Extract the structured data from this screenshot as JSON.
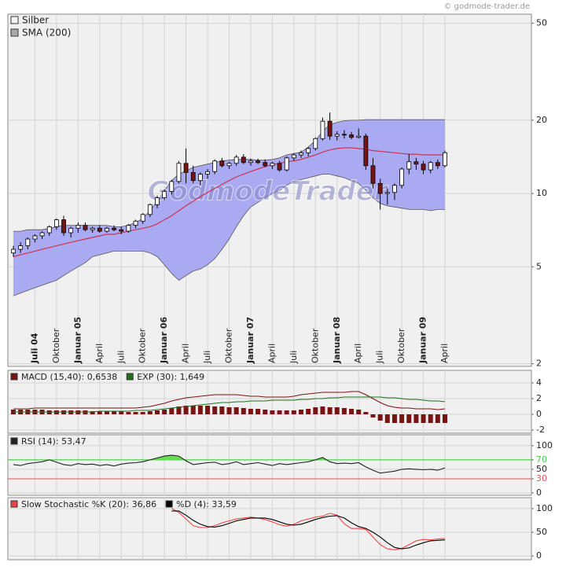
{
  "chart_data": [
    {
      "type": "candlestick",
      "name": "Silber",
      "credit": "© godmode-trader.de",
      "watermark": "GodmodeTrader",
      "log_scale": true,
      "ylim": [
        1.95,
        54.5
      ],
      "yticks": [
        2,
        5,
        10,
        20,
        50
      ],
      "grid": true,
      "categories": [
        null,
        null,
        null,
        "Juli 04",
        null,
        null,
        "Oktober",
        null,
        null,
        "Januar 05",
        null,
        null,
        "April",
        null,
        null,
        "Juli",
        null,
        null,
        "Oktober",
        null,
        null,
        "Januar 06",
        null,
        null,
        "April",
        null,
        null,
        "Juli",
        null,
        null,
        "Oktober",
        null,
        null,
        "Januar 07",
        null,
        null,
        "April",
        null,
        null,
        "Juli",
        null,
        null,
        "Oktober",
        null,
        null,
        "Januar 08",
        null,
        null,
        "April",
        null,
        null,
        "Juli",
        null,
        null,
        "Oktober",
        null,
        null,
        "Januar 09",
        null,
        null,
        "April"
      ],
      "up_color": "#ffffff",
      "down_color": "#7a1414",
      "open": [
        5.7,
        5.9,
        6.1,
        6.5,
        6.7,
        6.9,
        7.3,
        7.8,
        6.9,
        7.2,
        7.4,
        7.1,
        7.2,
        7.0,
        7.2,
        7.1,
        7.0,
        7.4,
        7.7,
        8.2,
        9.0,
        9.6,
        10.2,
        11.2,
        13.3,
        12.2,
        11.3,
        12.0,
        12.3,
        13.6,
        13.0,
        13.3,
        14.1,
        13.4,
        13.6,
        13.4,
        13.0,
        13.3,
        12.5,
        14.0,
        14.4,
        14.7,
        15.3,
        16.8,
        19.8,
        17.2,
        17.5,
        17.4,
        17.0,
        17.2,
        13.0,
        11.0,
        10.0,
        10.1,
        10.8,
        12.6,
        13.5,
        13.2,
        12.5,
        13.4,
        13.0
      ],
      "high": [
        6.1,
        6.3,
        6.6,
        6.8,
        7.0,
        7.4,
        7.9,
        8.1,
        7.3,
        7.6,
        7.6,
        7.3,
        7.4,
        7.3,
        7.4,
        7.3,
        7.5,
        7.8,
        8.3,
        9.1,
        9.8,
        10.4,
        11.4,
        13.6,
        15.3,
        13.0,
        12.2,
        12.6,
        13.8,
        14.0,
        13.5,
        14.4,
        14.5,
        13.9,
        13.9,
        13.8,
        13.5,
        13.6,
        14.2,
        14.6,
        15.0,
        15.5,
        17.0,
        20.5,
        21.5,
        18.0,
        18.2,
        17.9,
        18.5,
        17.6,
        14.0,
        11.5,
        10.5,
        11.0,
        12.8,
        14.5,
        14.0,
        13.6,
        13.6,
        13.8,
        15.0
      ],
      "low": [
        5.5,
        5.7,
        5.9,
        6.3,
        6.5,
        6.7,
        7.1,
        6.7,
        6.6,
        6.9,
        7.0,
        6.9,
        6.9,
        6.9,
        7.0,
        6.8,
        6.9,
        7.2,
        7.5,
        8.0,
        8.7,
        9.4,
        9.9,
        11.0,
        11.0,
        11.0,
        10.8,
        11.5,
        12.0,
        12.8,
        12.6,
        13.0,
        13.2,
        13.0,
        13.2,
        12.8,
        12.6,
        12.3,
        12.3,
        13.6,
        14.0,
        14.2,
        15.0,
        16.5,
        16.6,
        16.5,
        16.8,
        16.7,
        16.8,
        12.5,
        10.5,
        8.6,
        9.0,
        9.4,
        10.5,
        12.0,
        12.5,
        12.0,
        12.1,
        12.6,
        12.8
      ],
      "close": [
        5.9,
        6.1,
        6.5,
        6.7,
        6.9,
        7.3,
        7.8,
        6.9,
        7.2,
        7.4,
        7.1,
        7.2,
        7.0,
        7.2,
        7.1,
        7.0,
        7.4,
        7.7,
        8.2,
        9.0,
        9.6,
        10.2,
        11.2,
        13.3,
        12.2,
        11.3,
        12.0,
        12.3,
        13.6,
        13.0,
        13.3,
        14.1,
        13.4,
        13.6,
        13.4,
        13.0,
        13.3,
        12.5,
        14.0,
        14.4,
        14.7,
        15.3,
        16.8,
        19.8,
        17.2,
        17.5,
        17.4,
        17.0,
        17.2,
        13.0,
        11.0,
        10.0,
        10.1,
        10.8,
        12.6,
        13.5,
        13.2,
        12.5,
        13.4,
        13.0,
        14.7
      ],
      "sma": {
        "name": "SMA (200)",
        "color": "#cc3355",
        "values": [
          5.5,
          5.6,
          5.7,
          5.8,
          5.9,
          6.0,
          6.1,
          6.2,
          6.3,
          6.4,
          6.5,
          6.6,
          6.7,
          6.8,
          6.8,
          6.9,
          7.0,
          7.1,
          7.2,
          7.3,
          7.5,
          7.8,
          8.1,
          8.5,
          8.9,
          9.3,
          9.7,
          10.1,
          10.5,
          10.9,
          11.3,
          11.7,
          12.0,
          12.3,
          12.6,
          12.9,
          13.1,
          13.3,
          13.5,
          13.6,
          13.8,
          14.1,
          14.4,
          14.8,
          15.1,
          15.3,
          15.4,
          15.4,
          15.3,
          15.2,
          15.0,
          14.9,
          14.8,
          14.7,
          14.6,
          14.5,
          14.5,
          14.4,
          14.4,
          14.4,
          14.4
        ]
      },
      "band": {
        "color": "#a9aaf2",
        "upper": [
          7.0,
          7.0,
          7.1,
          7.1,
          7.1,
          7.2,
          7.3,
          7.4,
          7.4,
          7.4,
          7.4,
          7.4,
          7.4,
          7.4,
          7.3,
          7.3,
          7.4,
          7.6,
          7.9,
          8.5,
          9.3,
          10.3,
          11.3,
          12.0,
          12.4,
          12.8,
          13.0,
          13.2,
          13.4,
          13.6,
          13.7,
          13.8,
          13.8,
          13.8,
          13.7,
          13.7,
          13.8,
          14.0,
          14.4,
          14.6,
          14.8,
          15.5,
          16.5,
          18.0,
          19.2,
          19.6,
          19.9,
          20.0,
          20.0,
          20.1,
          20.1,
          20.1,
          20.1,
          20.1,
          20.1,
          20.1,
          20.1,
          20.1,
          20.1,
          20.1,
          20.1
        ],
        "lower": [
          3.8,
          3.9,
          4.0,
          4.1,
          4.2,
          4.3,
          4.4,
          4.6,
          4.8,
          5.0,
          5.2,
          5.5,
          5.6,
          5.7,
          5.8,
          5.8,
          5.8,
          5.8,
          5.8,
          5.7,
          5.5,
          5.1,
          4.7,
          4.4,
          4.6,
          4.8,
          4.9,
          5.1,
          5.4,
          5.9,
          6.5,
          7.3,
          8.1,
          8.8,
          9.2,
          9.6,
          10.0,
          10.3,
          10.8,
          11.2,
          11.4,
          11.6,
          11.8,
          12.0,
          12.0,
          11.8,
          11.6,
          11.3,
          11.0,
          10.3,
          9.6,
          9.1,
          8.9,
          8.8,
          8.7,
          8.6,
          8.6,
          8.6,
          8.5,
          8.6,
          8.6
        ]
      }
    },
    {
      "type": "macd",
      "ylim": [
        -2.4,
        5.6
      ],
      "yticks": [
        4,
        2,
        0,
        -2
      ],
      "grid": true,
      "histogram": {
        "color": "#7a1414",
        "values": [
          0.6,
          0.6,
          0.6,
          0.6,
          0.6,
          0.5,
          0.5,
          0.5,
          0.5,
          0.5,
          0.5,
          0.4,
          0.4,
          0.4,
          0.4,
          0.4,
          0.3,
          0.3,
          0.3,
          0.4,
          0.5,
          0.6,
          0.8,
          1.0,
          1.1,
          1.1,
          1.1,
          1.1,
          1.0,
          1.0,
          0.9,
          0.9,
          0.8,
          0.7,
          0.7,
          0.6,
          0.5,
          0.5,
          0.5,
          0.5,
          0.6,
          0.7,
          0.9,
          1.0,
          0.9,
          0.9,
          0.8,
          0.7,
          0.6,
          0.3,
          -0.4,
          -0.8,
          -1.1,
          -1.1,
          -1.1,
          -1.1,
          -1.1,
          -1.1,
          -1.1,
          -1.1,
          -1.1
        ]
      },
      "series": [
        {
          "name": "MACD (15,40): 0,6538",
          "color": "#7a1414",
          "values": [
            0.7,
            0.7,
            0.7,
            0.8,
            0.8,
            0.8,
            0.8,
            0.8,
            0.8,
            0.8,
            0.8,
            0.8,
            0.8,
            0.8,
            0.8,
            0.8,
            0.8,
            0.8,
            0.9,
            1.0,
            1.2,
            1.4,
            1.7,
            1.9,
            2.1,
            2.2,
            2.3,
            2.4,
            2.5,
            2.5,
            2.5,
            2.5,
            2.4,
            2.3,
            2.3,
            2.2,
            2.2,
            2.2,
            2.2,
            2.3,
            2.5,
            2.6,
            2.7,
            2.8,
            2.8,
            2.8,
            2.8,
            2.9,
            2.9,
            2.5,
            2.0,
            1.5,
            1.1,
            0.9,
            0.8,
            0.8,
            0.7,
            0.7,
            0.7,
            0.6,
            0.7
          ]
        },
        {
          "name": "EXP (30): 1,649",
          "color": "#1f6e1f",
          "values": [
            0.3,
            0.3,
            0.3,
            0.3,
            0.3,
            0.3,
            0.3,
            0.3,
            0.3,
            0.3,
            0.3,
            0.3,
            0.4,
            0.4,
            0.4,
            0.4,
            0.4,
            0.5,
            0.5,
            0.5,
            0.6,
            0.7,
            0.8,
            0.9,
            1.0,
            1.1,
            1.2,
            1.3,
            1.4,
            1.5,
            1.5,
            1.6,
            1.6,
            1.7,
            1.7,
            1.7,
            1.8,
            1.8,
            1.8,
            1.8,
            1.9,
            1.9,
            2.0,
            2.0,
            2.1,
            2.1,
            2.2,
            2.2,
            2.2,
            2.2,
            2.2,
            2.2,
            2.1,
            2.1,
            2.0,
            1.9,
            1.9,
            1.8,
            1.7,
            1.7,
            1.6
          ]
        }
      ]
    },
    {
      "type": "rsi",
      "ylim": [
        -5,
        123
      ],
      "yticks": [
        100,
        70,
        50,
        30,
        0
      ],
      "grid": true,
      "fill_color": "#66dd55",
      "levels": [
        {
          "value": 70,
          "color": "#44cc44"
        },
        {
          "value": 30,
          "color": "#e05555"
        }
      ],
      "series": [
        {
          "name": "RSI (14): 53,47",
          "color": "#222222",
          "values": [
            60,
            58,
            62,
            64,
            66,
            70,
            65,
            60,
            58,
            62,
            60,
            61,
            58,
            60,
            57,
            61,
            63,
            64,
            66,
            70,
            74,
            78,
            80,
            78,
            68,
            60,
            62,
            64,
            65,
            60,
            62,
            66,
            60,
            62,
            64,
            61,
            58,
            62,
            60,
            62,
            64,
            66,
            70,
            75,
            66,
            62,
            63,
            62,
            64,
            55,
            48,
            42,
            44,
            46,
            50,
            51,
            50,
            49,
            50,
            48,
            53
          ]
        }
      ]
    },
    {
      "type": "stochastic",
      "ylim": [
        -8,
        123
      ],
      "yticks": [
        100,
        50,
        0
      ],
      "grid": true,
      "series": [
        {
          "name": "Slow Stochastic %K (20): 36,86",
          "color": "#ee4444",
          "values": [
            null,
            null,
            null,
            null,
            null,
            null,
            null,
            null,
            null,
            null,
            null,
            null,
            null,
            null,
            null,
            null,
            null,
            null,
            null,
            null,
            null,
            null,
            100,
            92,
            78,
            64,
            60,
            60,
            64,
            70,
            74,
            78,
            80,
            82,
            80,
            77,
            72,
            66,
            63,
            67,
            74,
            78,
            82,
            84,
            90,
            86,
            68,
            58,
            58,
            56,
            40,
            24,
            15,
            13,
            16,
            24,
            32,
            35,
            34,
            36,
            37
          ]
        },
        {
          "name": "%D (4): 33,59",
          "color": "#000000",
          "values": [
            null,
            null,
            null,
            null,
            null,
            null,
            null,
            null,
            null,
            null,
            null,
            null,
            null,
            null,
            null,
            null,
            null,
            null,
            null,
            null,
            null,
            null,
            95,
            95,
            86,
            75,
            67,
            62,
            61,
            64,
            69,
            74,
            77,
            80,
            80,
            80,
            77,
            72,
            67,
            65,
            67,
            72,
            77,
            81,
            84,
            85,
            80,
            70,
            62,
            58,
            50,
            40,
            28,
            18,
            15,
            17,
            23,
            28,
            32,
            33,
            34
          ]
        }
      ]
    }
  ]
}
